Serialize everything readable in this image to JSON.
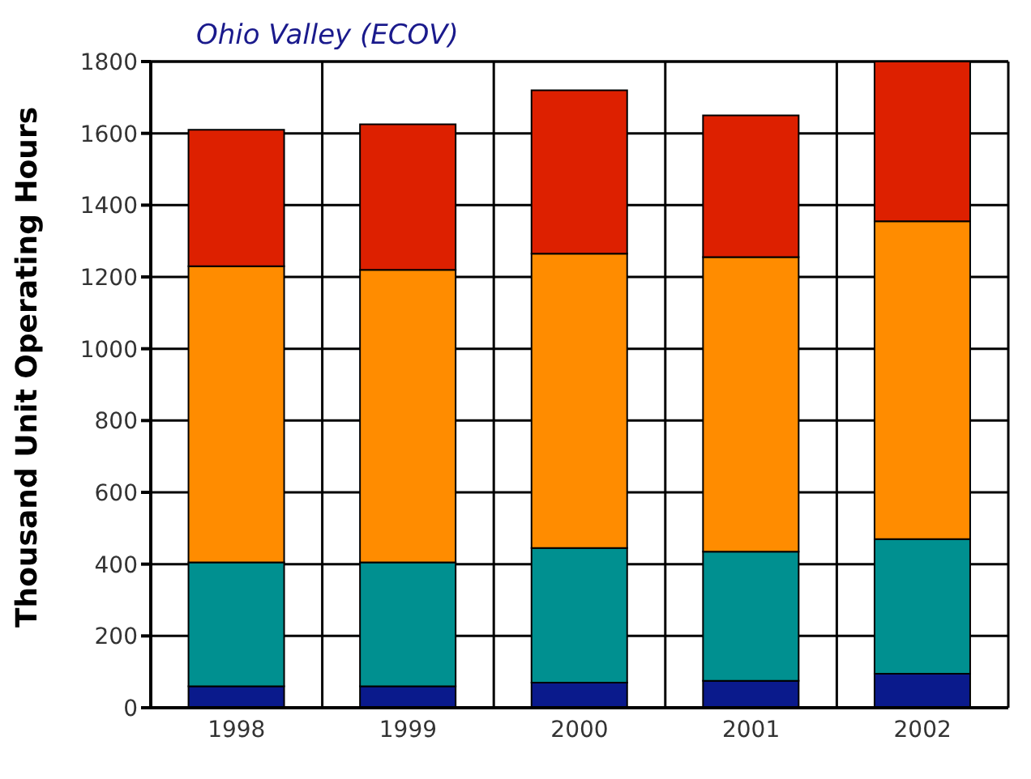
{
  "chart_data": {
    "type": "bar",
    "title": "Ohio Valley (ECOV)",
    "ylabel": "Thousand Unit Operating Hours",
    "categories": [
      "1998",
      "1999",
      "2000",
      "2001",
      "2002"
    ],
    "stacked": true,
    "series": [
      {
        "color": "#0a1a8c",
        "values": [
          60,
          60,
          70,
          75,
          95
        ]
      },
      {
        "color": "#009090",
        "values": [
          345,
          345,
          375,
          360,
          375
        ]
      },
      {
        "color": "#ff8c00",
        "values": [
          825,
          815,
          820,
          820,
          885
        ]
      },
      {
        "color": "#dd2000",
        "values": [
          380,
          405,
          455,
          395,
          445
        ]
      }
    ],
    "ylim": [
      0,
      1800
    ],
    "yticks": [
      0,
      200,
      400,
      600,
      800,
      1000,
      1200,
      1400,
      1600,
      1800
    ],
    "grid": true
  }
}
